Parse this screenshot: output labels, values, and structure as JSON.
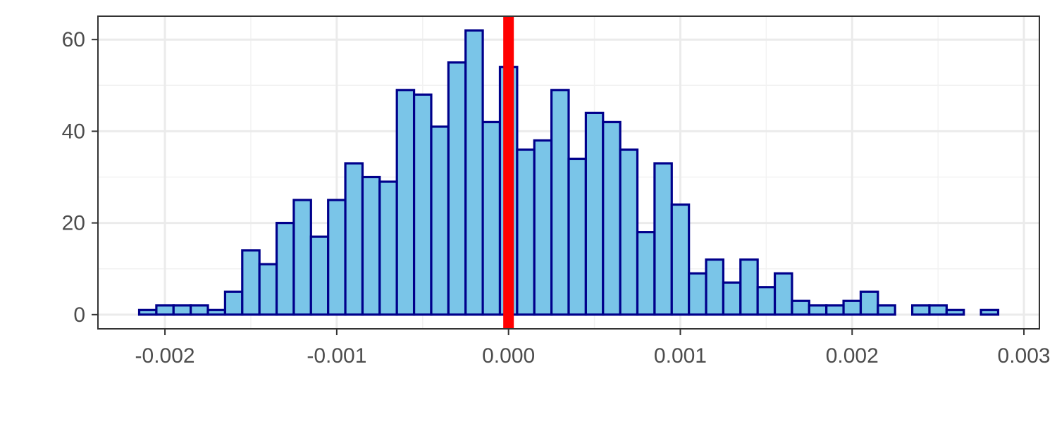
{
  "chart_data": {
    "type": "bar",
    "subtype": "histogram",
    "title": "",
    "xlabel": "",
    "ylabel": "",
    "bin_width": 0.0001,
    "bins": [
      {
        "x_start": -0.00215,
        "x_end": -0.00205,
        "count": 1
      },
      {
        "x_start": -0.00205,
        "x_end": -0.00195,
        "count": 2
      },
      {
        "x_start": -0.00195,
        "x_end": -0.00185,
        "count": 2
      },
      {
        "x_start": -0.00185,
        "x_end": -0.00175,
        "count": 2
      },
      {
        "x_start": -0.00175,
        "x_end": -0.00165,
        "count": 1
      },
      {
        "x_start": -0.00165,
        "x_end": -0.00155,
        "count": 5
      },
      {
        "x_start": -0.00155,
        "x_end": -0.00145,
        "count": 14
      },
      {
        "x_start": -0.00145,
        "x_end": -0.00135,
        "count": 11
      },
      {
        "x_start": -0.00135,
        "x_end": -0.00125,
        "count": 20
      },
      {
        "x_start": -0.00125,
        "x_end": -0.00115,
        "count": 25
      },
      {
        "x_start": -0.00115,
        "x_end": -0.00105,
        "count": 17
      },
      {
        "x_start": -0.00105,
        "x_end": -0.00095,
        "count": 25
      },
      {
        "x_start": -0.00095,
        "x_end": -0.00085,
        "count": 33
      },
      {
        "x_start": -0.00085,
        "x_end": -0.00075,
        "count": 30
      },
      {
        "x_start": -0.00075,
        "x_end": -0.00065,
        "count": 29
      },
      {
        "x_start": -0.00065,
        "x_end": -0.00055,
        "count": 49
      },
      {
        "x_start": -0.00055,
        "x_end": -0.00045,
        "count": 48
      },
      {
        "x_start": -0.00045,
        "x_end": -0.00035,
        "count": 41
      },
      {
        "x_start": -0.00035,
        "x_end": -0.00025,
        "count": 55
      },
      {
        "x_start": -0.00025,
        "x_end": -0.00015,
        "count": 62
      },
      {
        "x_start": -0.00015,
        "x_end": -5e-05,
        "count": 42
      },
      {
        "x_start": -5e-05,
        "x_end": 5e-05,
        "count": 54
      },
      {
        "x_start": 5e-05,
        "x_end": 0.00015,
        "count": 36
      },
      {
        "x_start": 0.00015,
        "x_end": 0.00025,
        "count": 38
      },
      {
        "x_start": 0.00025,
        "x_end": 0.00035,
        "count": 49
      },
      {
        "x_start": 0.00035,
        "x_end": 0.00045,
        "count": 34
      },
      {
        "x_start": 0.00045,
        "x_end": 0.00055,
        "count": 44
      },
      {
        "x_start": 0.00055,
        "x_end": 0.00065,
        "count": 42
      },
      {
        "x_start": 0.00065,
        "x_end": 0.00075,
        "count": 36
      },
      {
        "x_start": 0.00075,
        "x_end": 0.00085,
        "count": 18
      },
      {
        "x_start": 0.00085,
        "x_end": 0.00095,
        "count": 33
      },
      {
        "x_start": 0.00095,
        "x_end": 0.00105,
        "count": 24
      },
      {
        "x_start": 0.00105,
        "x_end": 0.00115,
        "count": 9
      },
      {
        "x_start": 0.00115,
        "x_end": 0.00125,
        "count": 12
      },
      {
        "x_start": 0.00125,
        "x_end": 0.00135,
        "count": 7
      },
      {
        "x_start": 0.00135,
        "x_end": 0.00145,
        "count": 12
      },
      {
        "x_start": 0.00145,
        "x_end": 0.00155,
        "count": 6
      },
      {
        "x_start": 0.00155,
        "x_end": 0.00165,
        "count": 9
      },
      {
        "x_start": 0.00165,
        "x_end": 0.00175,
        "count": 3
      },
      {
        "x_start": 0.00175,
        "x_end": 0.00185,
        "count": 2
      },
      {
        "x_start": 0.00185,
        "x_end": 0.00195,
        "count": 2
      },
      {
        "x_start": 0.00195,
        "x_end": 0.00205,
        "count": 3
      },
      {
        "x_start": 0.00205,
        "x_end": 0.00215,
        "count": 5
      },
      {
        "x_start": 0.00215,
        "x_end": 0.00225,
        "count": 2
      },
      {
        "x_start": 0.00225,
        "x_end": 0.00235,
        "count": 0
      },
      {
        "x_start": 0.00235,
        "x_end": 0.00245,
        "count": 2
      },
      {
        "x_start": 0.00245,
        "x_end": 0.00255,
        "count": 2
      },
      {
        "x_start": 0.00255,
        "x_end": 0.00265,
        "count": 1
      },
      {
        "x_start": 0.00265,
        "x_end": 0.00275,
        "count": 0
      },
      {
        "x_start": 0.00275,
        "x_end": 0.00285,
        "count": 1
      }
    ],
    "xlim": [
      -0.00239,
      0.00309
    ],
    "ylim": [
      -3.1,
      65.1
    ],
    "x_ticks": [
      -0.002,
      -0.001,
      0.0,
      0.001,
      0.002,
      0.003
    ],
    "x_tick_labels": [
      "-0.002",
      "-0.001",
      "0.000",
      "0.001",
      "0.002",
      "0.003"
    ],
    "y_ticks": [
      0,
      20,
      40,
      60
    ],
    "y_tick_labels": [
      "0",
      "20",
      "40",
      "60"
    ],
    "reference_line": {
      "x": 0.0,
      "color": "#ff0000"
    },
    "grid": true,
    "legend": "none",
    "colors": {
      "bar_fill": "#7ac5e8",
      "bar_stroke": "#00008b",
      "grid_major": "#ebebeb",
      "grid_minor": "#f2f2f2",
      "panel_border": "#333333",
      "tick_text": "#4d4d4d",
      "background": "#ffffff"
    }
  }
}
